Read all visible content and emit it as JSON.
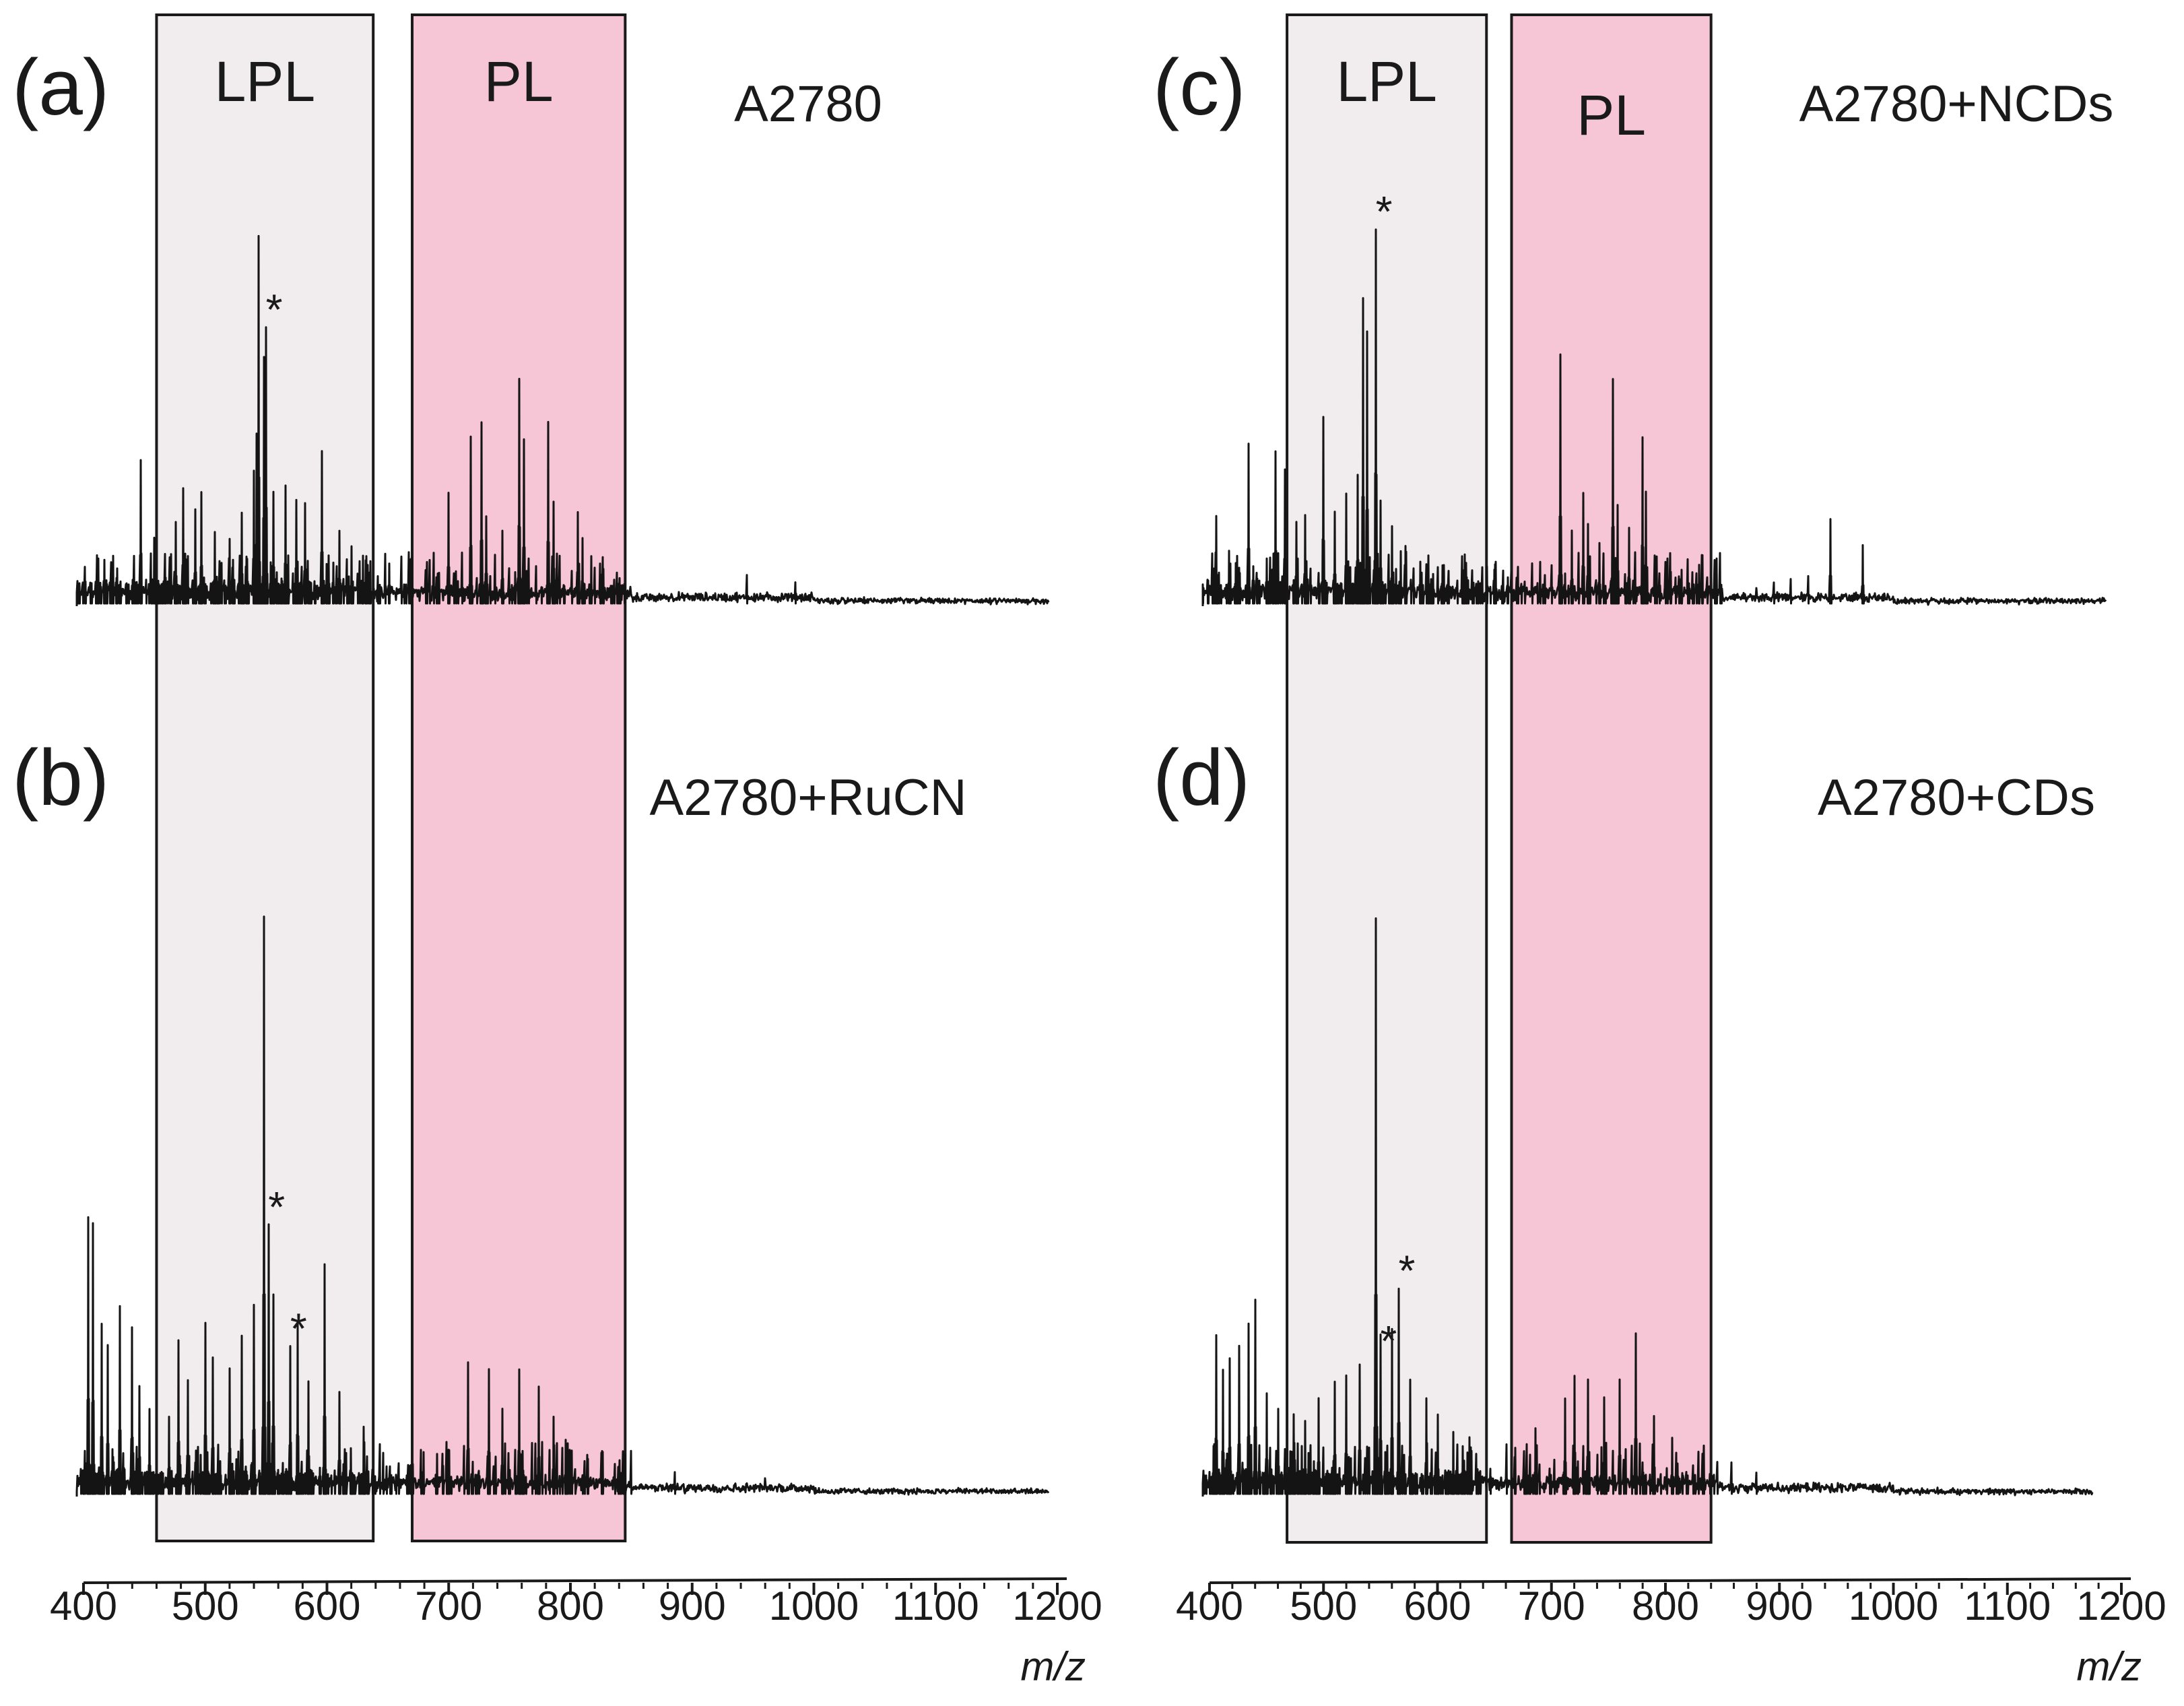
{
  "chart_data": [
    {
      "type": "line",
      "panel": "(a)",
      "sample": "A2780",
      "xlabel": "m/z",
      "xlim": [
        400,
        1200
      ],
      "ticks": [
        400,
        500,
        600,
        700,
        800,
        900,
        1000,
        1100,
        1200
      ],
      "tick_labels": [
        "400",
        "500",
        "600",
        "700",
        "800",
        "900",
        "1000",
        "1100",
        "1200"
      ],
      "regions": [
        {
          "label": "LPL",
          "range": [
            460,
            638
          ],
          "color": "#f1ecee"
        },
        {
          "label": "PL",
          "range": [
            670,
            845
          ],
          "color": "#f7c6d6"
        }
      ],
      "peaks": [
        {
          "mz": 447,
          "h": 0.39
        },
        {
          "mz": 458,
          "h": 0.18
        },
        {
          "mz": 467,
          "h": 0.14
        },
        {
          "mz": 476,
          "h": 0.22
        },
        {
          "mz": 482,
          "h": 0.31
        },
        {
          "mz": 492,
          "h": 0.26
        },
        {
          "mz": 497,
          "h": 0.3
        },
        {
          "mz": 508,
          "h": 0.2
        },
        {
          "mz": 520,
          "h": 0.18
        },
        {
          "mz": 530,
          "h": 0.25
        },
        {
          "mz": 540,
          "h": 0.36
        },
        {
          "mz": 542,
          "h": 0.46
        },
        {
          "mz": 544,
          "h": 0.98
        },
        {
          "mz": 548,
          "h": 0.66
        },
        {
          "mz": 550,
          "h": 0.74
        },
        {
          "mz": 556,
          "h": 0.3
        },
        {
          "mz": 566,
          "h": 0.32
        },
        {
          "mz": 575,
          "h": 0.28
        },
        {
          "mz": 582,
          "h": 0.27
        },
        {
          "mz": 596,
          "h": 0.41
        },
        {
          "mz": 610,
          "h": 0.2
        },
        {
          "mz": 620,
          "h": 0.16
        },
        {
          "mz": 632,
          "h": 0.12
        },
        {
          "mz": 682,
          "h": 0.12
        },
        {
          "mz": 700,
          "h": 0.3
        },
        {
          "mz": 718,
          "h": 0.45
        },
        {
          "mz": 727,
          "h": 0.49
        },
        {
          "mz": 731,
          "h": 0.24
        },
        {
          "mz": 744,
          "h": 0.2
        },
        {
          "mz": 758,
          "h": 0.6
        },
        {
          "mz": 762,
          "h": 0.44
        },
        {
          "mz": 782,
          "h": 0.49
        },
        {
          "mz": 786,
          "h": 0.28
        },
        {
          "mz": 806,
          "h": 0.25
        },
        {
          "mz": 810,
          "h": 0.18
        },
        {
          "mz": 820,
          "h": 0.1
        },
        {
          "mz": 945,
          "h": 0.08
        },
        {
          "mz": 985,
          "h": 0.06
        }
      ],
      "annotations": [
        {
          "text": "*",
          "mz": 550
        }
      ]
    },
    {
      "type": "line",
      "panel": "(b)",
      "sample": "A2780+RuCN",
      "xlabel": "m/z",
      "xlim": [
        400,
        1200
      ],
      "ticks": [
        400,
        500,
        600,
        700,
        800,
        900,
        1000,
        1100,
        1200
      ],
      "tick_labels": [
        "400",
        "500",
        "600",
        "700",
        "800",
        "900",
        "1000",
        "1100",
        "1200"
      ],
      "regions": [
        {
          "label": "LPL",
          "range": [
            460,
            638
          ],
          "color": "#f1ecee"
        },
        {
          "label": "PL",
          "range": [
            670,
            845
          ],
          "color": "#f7c6d6"
        }
      ],
      "peaks": [
        {
          "mz": 404,
          "h": 0.48
        },
        {
          "mz": 408,
          "h": 0.47
        },
        {
          "mz": 415,
          "h": 0.3
        },
        {
          "mz": 420,
          "h": 0.26
        },
        {
          "mz": 430,
          "h": 0.33
        },
        {
          "mz": 440,
          "h": 0.29
        },
        {
          "mz": 446,
          "h": 0.19
        },
        {
          "mz": 454,
          "h": 0.15
        },
        {
          "mz": 470,
          "h": 0.14
        },
        {
          "mz": 478,
          "h": 0.27
        },
        {
          "mz": 486,
          "h": 0.2
        },
        {
          "mz": 500,
          "h": 0.3
        },
        {
          "mz": 506,
          "h": 0.24
        },
        {
          "mz": 520,
          "h": 0.22
        },
        {
          "mz": 530,
          "h": 0.28
        },
        {
          "mz": 540,
          "h": 0.33
        },
        {
          "mz": 548,
          "h": 1.0
        },
        {
          "mz": 552,
          "h": 0.47
        },
        {
          "mz": 556,
          "h": 0.35
        },
        {
          "mz": 570,
          "h": 0.26
        },
        {
          "mz": 576,
          "h": 0.3
        },
        {
          "mz": 585,
          "h": 0.2
        },
        {
          "mz": 598,
          "h": 0.4
        },
        {
          "mz": 610,
          "h": 0.18
        },
        {
          "mz": 630,
          "h": 0.12
        },
        {
          "mz": 700,
          "h": 0.08
        },
        {
          "mz": 716,
          "h": 0.23
        },
        {
          "mz": 733,
          "h": 0.22
        },
        {
          "mz": 744,
          "h": 0.15
        },
        {
          "mz": 758,
          "h": 0.22
        },
        {
          "mz": 774,
          "h": 0.19
        },
        {
          "mz": 786,
          "h": 0.14
        },
        {
          "mz": 796,
          "h": 0.1
        },
        {
          "mz": 886,
          "h": 0.04
        },
        {
          "mz": 960,
          "h": 0.03
        }
      ],
      "annotations": [
        {
          "text": "*",
          "mz": 552
        },
        {
          "text": "*",
          "mz": 570
        }
      ]
    },
    {
      "type": "line",
      "panel": "(c)",
      "sample": "A2780+NCDs",
      "xlabel": "m/z",
      "xlim": [
        400,
        1200
      ],
      "ticks": [
        400,
        500,
        600,
        700,
        800,
        900,
        1000,
        1100,
        1200
      ],
      "tick_labels": [
        "400",
        "500",
        "600",
        "700",
        "800",
        "900",
        "1000",
        "1100",
        "1200"
      ],
      "regions": [
        {
          "label": "LPL",
          "range": [
            468,
            643
          ],
          "color": "#f1ecee"
        },
        {
          "label": "PL",
          "range": [
            665,
            840
          ],
          "color": "#f7c6d6"
        }
      ],
      "peaks": [
        {
          "mz": 406,
          "h": 0.24
        },
        {
          "mz": 417,
          "h": 0.15
        },
        {
          "mz": 424,
          "h": 0.13
        },
        {
          "mz": 434,
          "h": 0.43
        },
        {
          "mz": 450,
          "h": 0.13
        },
        {
          "mz": 458,
          "h": 0.41
        },
        {
          "mz": 466,
          "h": 0.36
        },
        {
          "mz": 476,
          "h": 0.22
        },
        {
          "mz": 484,
          "h": 0.24
        },
        {
          "mz": 500,
          "h": 0.5
        },
        {
          "mz": 510,
          "h": 0.25
        },
        {
          "mz": 520,
          "h": 0.3
        },
        {
          "mz": 530,
          "h": 0.35
        },
        {
          "mz": 535,
          "h": 0.82
        },
        {
          "mz": 538,
          "h": 0.73
        },
        {
          "mz": 546,
          "h": 1.0
        },
        {
          "mz": 550,
          "h": 0.28
        },
        {
          "mz": 560,
          "h": 0.21
        },
        {
          "mz": 572,
          "h": 0.16
        },
        {
          "mz": 585,
          "h": 0.12
        },
        {
          "mz": 600,
          "h": 0.1
        },
        {
          "mz": 625,
          "h": 0.06
        },
        {
          "mz": 683,
          "h": 0.11
        },
        {
          "mz": 694,
          "h": 0.08
        },
        {
          "mz": 708,
          "h": 0.67
        },
        {
          "mz": 718,
          "h": 0.2
        },
        {
          "mz": 728,
          "h": 0.3
        },
        {
          "mz": 732,
          "h": 0.22
        },
        {
          "mz": 742,
          "h": 0.17
        },
        {
          "mz": 754,
          "h": 0.6
        },
        {
          "mz": 758,
          "h": 0.27
        },
        {
          "mz": 768,
          "h": 0.21
        },
        {
          "mz": 780,
          "h": 0.45
        },
        {
          "mz": 783,
          "h": 0.3
        },
        {
          "mz": 800,
          "h": 0.12
        },
        {
          "mz": 805,
          "h": 0.09
        },
        {
          "mz": 880,
          "h": 0.05
        },
        {
          "mz": 895,
          "h": 0.06
        },
        {
          "mz": 910,
          "h": 0.07
        },
        {
          "mz": 925,
          "h": 0.08
        },
        {
          "mz": 945,
          "h": 0.23
        },
        {
          "mz": 973,
          "h": 0.16
        }
      ],
      "annotations": [
        {
          "text": "*",
          "mz": 546
        }
      ]
    },
    {
      "type": "line",
      "panel": "(d)",
      "sample": "A2780+CDs",
      "xlabel": "m/z",
      "xlim": [
        400,
        1200
      ],
      "ticks": [
        400,
        500,
        600,
        700,
        800,
        900,
        1000,
        1100,
        1200
      ],
      "tick_labels": [
        "400",
        "500",
        "600",
        "700",
        "800",
        "900",
        "1000",
        "1100",
        "1200"
      ],
      "regions": [
        {
          "label": "LPL",
          "range": [
            468,
            643
          ],
          "color": "#f1ecee"
        },
        {
          "label": "PL",
          "range": [
            665,
            840
          ],
          "color": "#f7c6d6"
        }
      ],
      "peaks": [
        {
          "mz": 406,
          "h": 0.28
        },
        {
          "mz": 412,
          "h": 0.22
        },
        {
          "mz": 418,
          "h": 0.24
        },
        {
          "mz": 426,
          "h": 0.26
        },
        {
          "mz": 434,
          "h": 0.3
        },
        {
          "mz": 440,
          "h": 0.34
        },
        {
          "mz": 450,
          "h": 0.18
        },
        {
          "mz": 460,
          "h": 0.15
        },
        {
          "mz": 474,
          "h": 0.14
        },
        {
          "mz": 484,
          "h": 0.13
        },
        {
          "mz": 496,
          "h": 0.17
        },
        {
          "mz": 510,
          "h": 0.2
        },
        {
          "mz": 520,
          "h": 0.21
        },
        {
          "mz": 532,
          "h": 0.23
        },
        {
          "mz": 546,
          "h": 1.0
        },
        {
          "mz": 550,
          "h": 0.28
        },
        {
          "mz": 560,
          "h": 0.29
        },
        {
          "mz": 566,
          "h": 0.36
        },
        {
          "mz": 576,
          "h": 0.2
        },
        {
          "mz": 590,
          "h": 0.17
        },
        {
          "mz": 600,
          "h": 0.14
        },
        {
          "mz": 614,
          "h": 0.11
        },
        {
          "mz": 628,
          "h": 0.1
        },
        {
          "mz": 686,
          "h": 0.12
        },
        {
          "mz": 712,
          "h": 0.17
        },
        {
          "mz": 720,
          "h": 0.21
        },
        {
          "mz": 732,
          "h": 0.2
        },
        {
          "mz": 746,
          "h": 0.17
        },
        {
          "mz": 760,
          "h": 0.2
        },
        {
          "mz": 774,
          "h": 0.28
        },
        {
          "mz": 790,
          "h": 0.14
        },
        {
          "mz": 806,
          "h": 0.1
        },
        {
          "mz": 858,
          "h": 0.06
        },
        {
          "mz": 880,
          "h": 0.04
        }
      ],
      "annotations": [
        {
          "text": "*",
          "mz": 552
        },
        {
          "text": "*",
          "mz": 566
        }
      ]
    }
  ]
}
